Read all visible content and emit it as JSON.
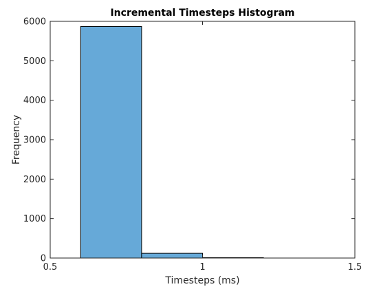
{
  "chart_data": {
    "type": "bar",
    "title": "Incremental Timesteps Histogram",
    "xlabel": "Timesteps (ms)",
    "ylabel": "Frequency",
    "xlim": [
      0.5,
      1.5
    ],
    "ylim": [
      0,
      6000
    ],
    "xticks": [
      0.5,
      1,
      1.5
    ],
    "xtick_labels": [
      "0.5",
      "1",
      "1.5"
    ],
    "yticks": [
      0,
      1000,
      2000,
      3000,
      4000,
      5000,
      6000
    ],
    "ytick_labels": [
      "0",
      "1000",
      "2000",
      "3000",
      "4000",
      "5000",
      "6000"
    ],
    "bins": [
      {
        "start": 0.6,
        "end": 0.8,
        "count": 5870
      },
      {
        "start": 0.8,
        "end": 1.0,
        "count": 120
      },
      {
        "start": 1.0,
        "end": 1.2,
        "count": 10
      }
    ],
    "grid": false,
    "colors": {
      "bar_fill": "#66a9d8",
      "bar_edge": "#000000",
      "axis": "#262626"
    }
  }
}
